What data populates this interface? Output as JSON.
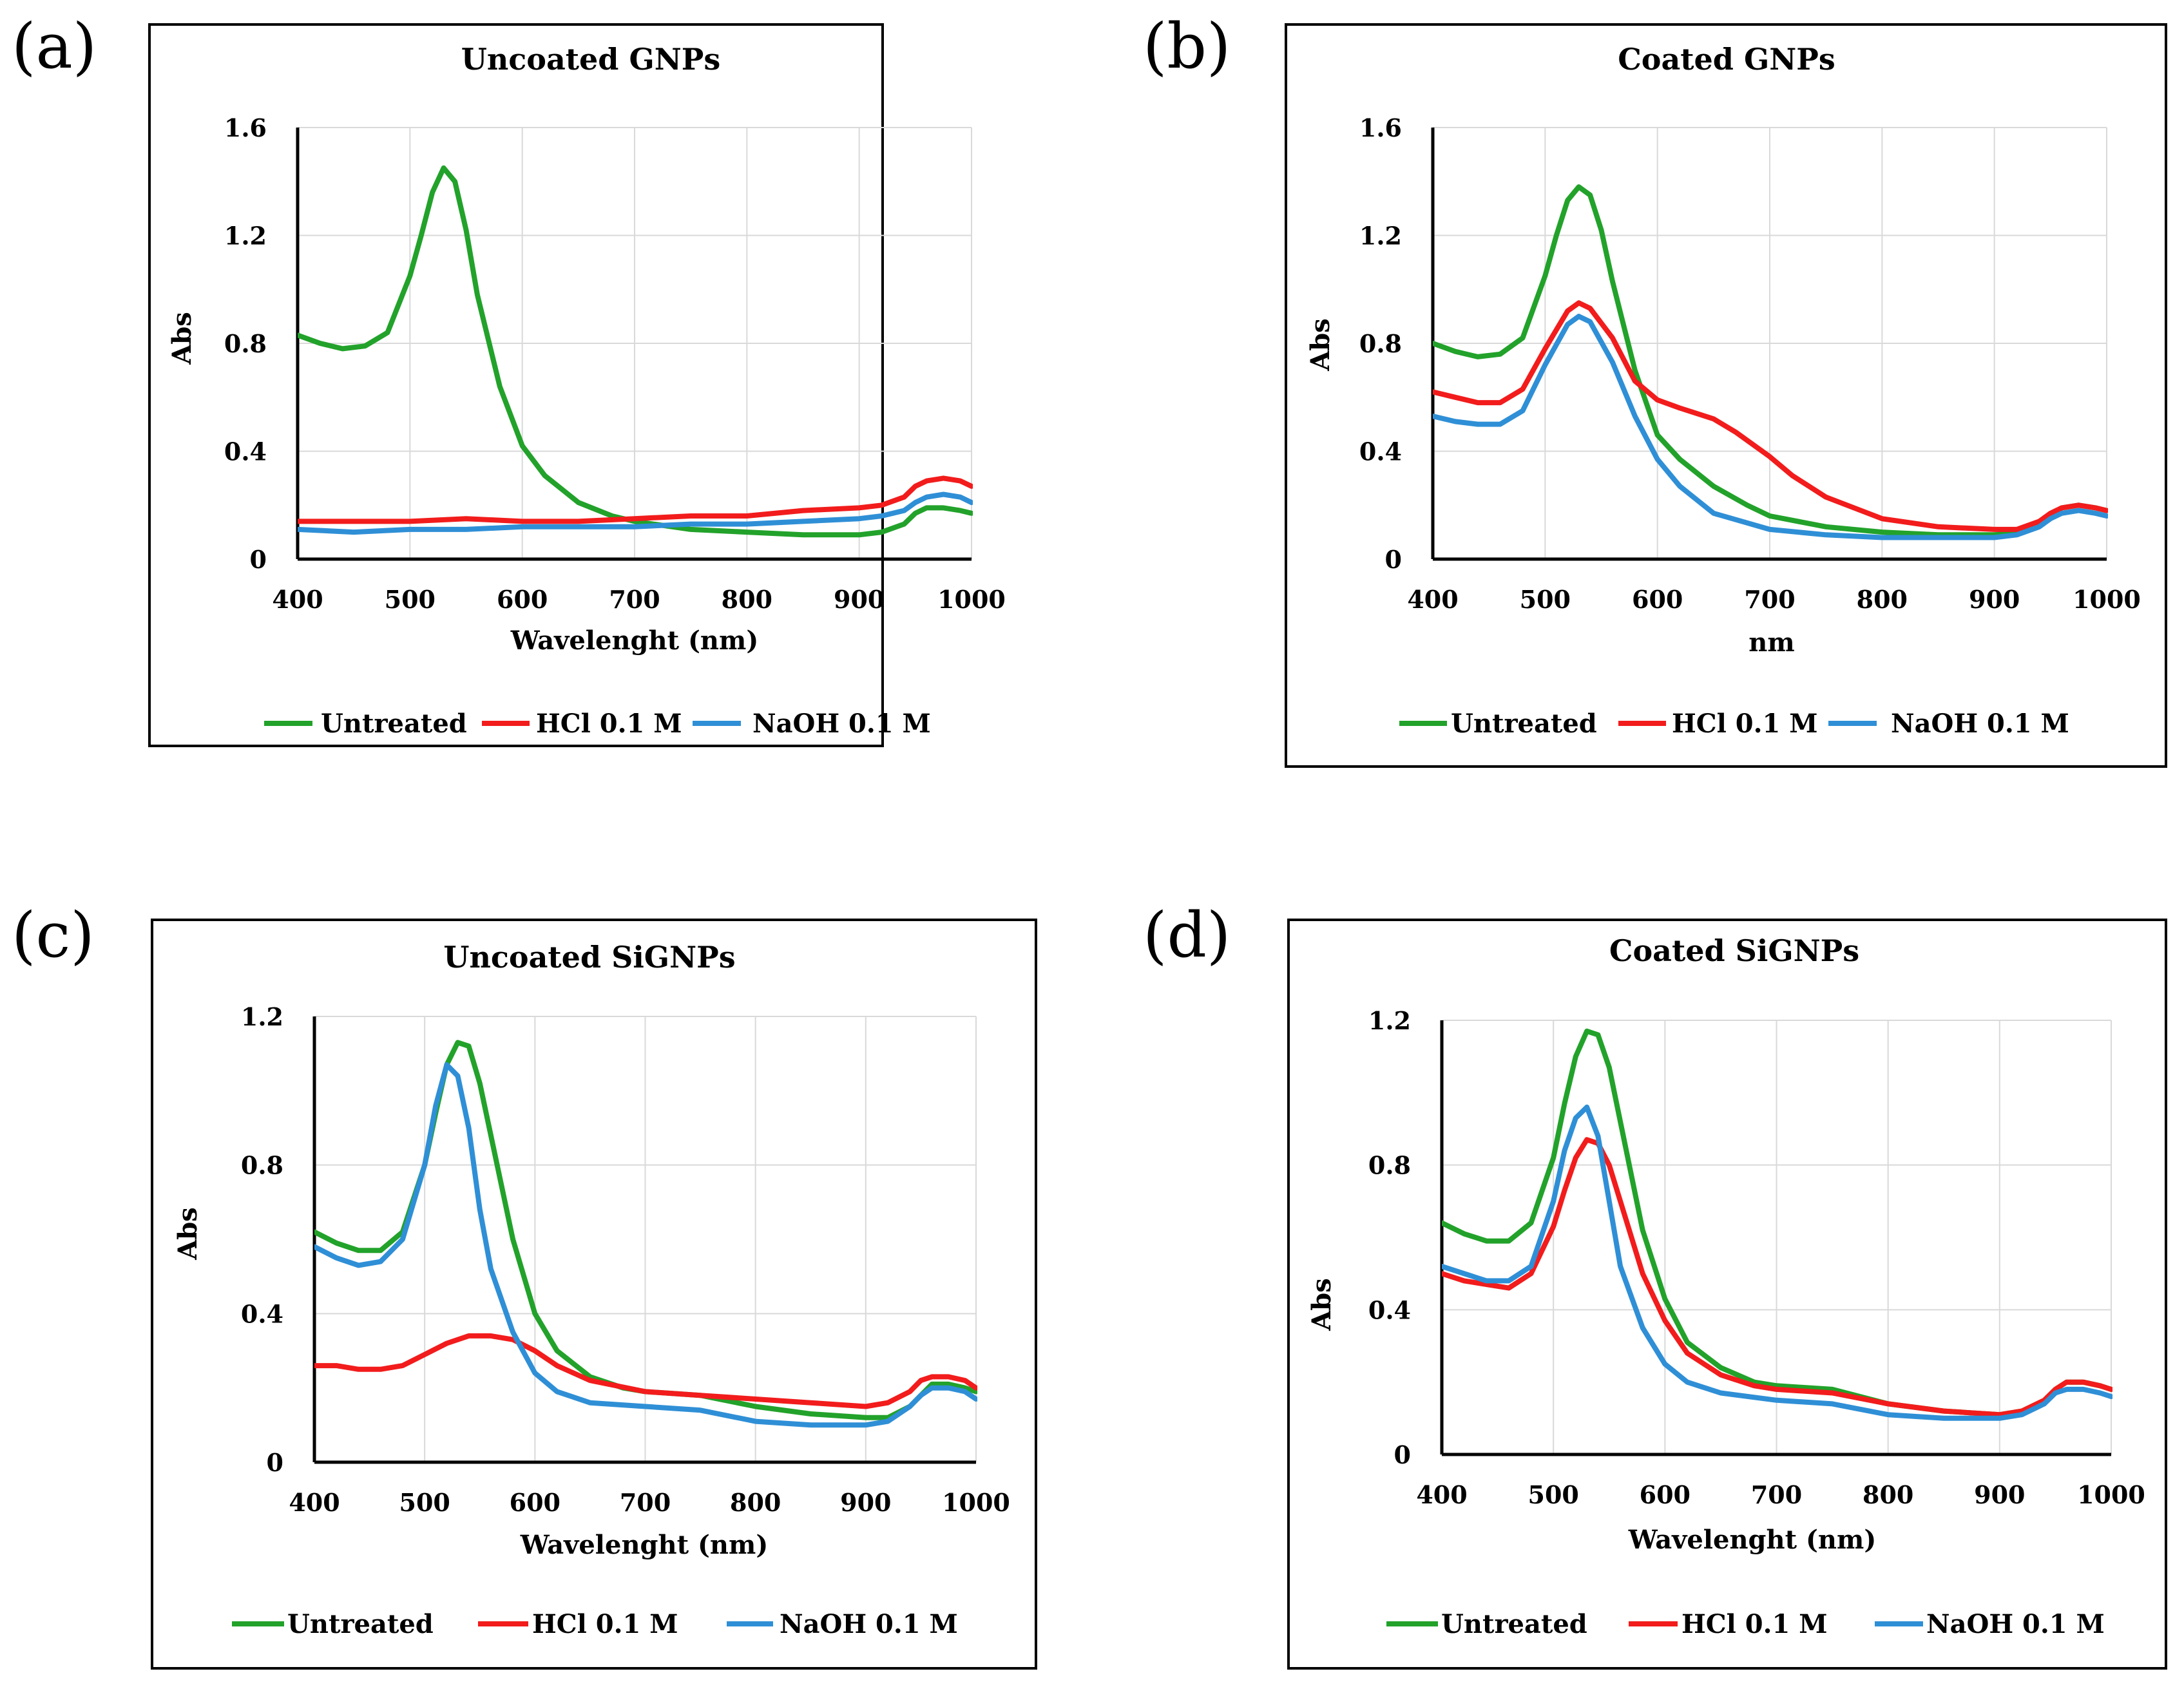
{
  "colors": {
    "untreated": "#22a22a",
    "hcl": "#f21c1c",
    "naoh": "#2f8fd6"
  },
  "chart_data": [
    {
      "panel_label": "(a)",
      "title": "Uncoated GNPs",
      "type": "line",
      "xlabel": "Wavelenght (nm)",
      "ylabel": "Abs",
      "xlim": [
        400,
        1000
      ],
      "ylim": [
        0,
        1.6
      ],
      "xticks": [
        400,
        500,
        600,
        700,
        800,
        900,
        1000
      ],
      "xtick_labels": [
        "400",
        "500",
        "600",
        "700",
        "800",
        "900",
        "1000"
      ],
      "yticks": [
        0,
        0.4,
        0.8,
        1.2,
        1.6
      ],
      "ytick_labels": [
        "0",
        "0.4",
        "0.8",
        "1.2",
        "1.6"
      ],
      "grid": true,
      "legend_position": "bottom",
      "series": [
        {
          "name": "Untreated",
          "color_key": "untreated",
          "x": [
            400,
            420,
            440,
            460,
            480,
            500,
            510,
            520,
            530,
            540,
            550,
            560,
            580,
            600,
            620,
            650,
            680,
            700,
            750,
            800,
            850,
            900,
            920,
            940,
            950,
            960,
            975,
            990,
            1000
          ],
          "y": [
            0.83,
            0.8,
            0.78,
            0.79,
            0.84,
            1.05,
            1.2,
            1.36,
            1.45,
            1.4,
            1.22,
            0.98,
            0.64,
            0.42,
            0.31,
            0.21,
            0.16,
            0.14,
            0.11,
            0.1,
            0.09,
            0.09,
            0.1,
            0.13,
            0.17,
            0.19,
            0.19,
            0.18,
            0.17
          ]
        },
        {
          "name": "HCl 0.1 M",
          "color_key": "hcl",
          "x": [
            400,
            450,
            500,
            550,
            600,
            650,
            700,
            750,
            800,
            850,
            900,
            920,
            940,
            950,
            960,
            975,
            990,
            1000
          ],
          "y": [
            0.14,
            0.14,
            0.14,
            0.15,
            0.14,
            0.14,
            0.15,
            0.16,
            0.16,
            0.18,
            0.19,
            0.2,
            0.23,
            0.27,
            0.29,
            0.3,
            0.29,
            0.27
          ]
        },
        {
          "name": "NaOH 0.1 M",
          "color_key": "naoh",
          "x": [
            400,
            450,
            500,
            550,
            600,
            650,
            700,
            750,
            800,
            850,
            900,
            920,
            940,
            950,
            960,
            975,
            990,
            1000
          ],
          "y": [
            0.11,
            0.1,
            0.11,
            0.11,
            0.12,
            0.12,
            0.12,
            0.13,
            0.13,
            0.14,
            0.15,
            0.16,
            0.18,
            0.21,
            0.23,
            0.24,
            0.23,
            0.21
          ]
        }
      ]
    },
    {
      "panel_label": "(b)",
      "title": "Coated GNPs",
      "type": "line",
      "xlabel": "nm",
      "ylabel": "Abs",
      "xlim": [
        400,
        1000
      ],
      "ylim": [
        0,
        1.6
      ],
      "xticks": [
        400,
        500,
        600,
        700,
        800,
        900,
        1000
      ],
      "xtick_labels": [
        "400",
        "500",
        "600",
        "700",
        "800",
        "900",
        "1000"
      ],
      "yticks": [
        0,
        0.4,
        0.8,
        1.2,
        1.6
      ],
      "ytick_labels": [
        "0",
        "0.4",
        "0.8",
        "1.2",
        "1.6"
      ],
      "grid": true,
      "legend_position": "bottom",
      "series": [
        {
          "name": "Untreated",
          "color_key": "untreated",
          "x": [
            400,
            420,
            440,
            460,
            480,
            500,
            510,
            520,
            530,
            540,
            550,
            560,
            580,
            600,
            620,
            650,
            680,
            700,
            750,
            800,
            850,
            900,
            920,
            940,
            950,
            960,
            975,
            990,
            1000
          ],
          "y": [
            0.8,
            0.77,
            0.75,
            0.76,
            0.82,
            1.05,
            1.2,
            1.33,
            1.38,
            1.35,
            1.22,
            1.03,
            0.7,
            0.46,
            0.37,
            0.27,
            0.2,
            0.16,
            0.12,
            0.1,
            0.09,
            0.09,
            0.1,
            0.13,
            0.16,
            0.19,
            0.2,
            0.19,
            0.18
          ]
        },
        {
          "name": "HCl 0.1 M",
          "color_key": "hcl",
          "x": [
            400,
            420,
            440,
            460,
            480,
            500,
            520,
            530,
            540,
            560,
            580,
            600,
            620,
            650,
            670,
            700,
            720,
            750,
            800,
            850,
            900,
            920,
            940,
            950,
            960,
            975,
            990,
            1000
          ],
          "y": [
            0.62,
            0.6,
            0.58,
            0.58,
            0.63,
            0.78,
            0.92,
            0.95,
            0.93,
            0.82,
            0.66,
            0.59,
            0.56,
            0.52,
            0.47,
            0.38,
            0.31,
            0.23,
            0.15,
            0.12,
            0.11,
            0.11,
            0.14,
            0.17,
            0.19,
            0.2,
            0.19,
            0.18
          ]
        },
        {
          "name": "NaOH 0.1 M",
          "color_key": "naoh",
          "x": [
            400,
            420,
            440,
            460,
            480,
            500,
            520,
            530,
            540,
            560,
            580,
            600,
            620,
            650,
            700,
            750,
            800,
            850,
            900,
            920,
            940,
            950,
            960,
            975,
            990,
            1000
          ],
          "y": [
            0.53,
            0.51,
            0.5,
            0.5,
            0.55,
            0.72,
            0.87,
            0.9,
            0.88,
            0.73,
            0.53,
            0.37,
            0.27,
            0.17,
            0.11,
            0.09,
            0.08,
            0.08,
            0.08,
            0.09,
            0.12,
            0.15,
            0.17,
            0.18,
            0.17,
            0.16
          ]
        }
      ]
    },
    {
      "panel_label": "(c)",
      "title": "Uncoated SiGNPs",
      "type": "line",
      "xlabel": "Wavelenght (nm)",
      "ylabel": "Abs",
      "xlim": [
        400,
        1000
      ],
      "ylim": [
        0,
        1.2
      ],
      "xticks": [
        400,
        500,
        600,
        700,
        800,
        900,
        1000
      ],
      "xtick_labels": [
        "400",
        "500",
        "600",
        "700",
        "800",
        "900",
        "1000"
      ],
      "yticks": [
        0,
        0.4,
        0.8,
        1.2
      ],
      "ytick_labels": [
        "0",
        "0.4",
        "0.8",
        "1.2"
      ],
      "grid": true,
      "legend_position": "bottom",
      "series": [
        {
          "name": "Untreated",
          "color_key": "untreated",
          "x": [
            400,
            420,
            440,
            460,
            480,
            500,
            510,
            520,
            530,
            540,
            550,
            560,
            580,
            600,
            620,
            650,
            680,
            700,
            750,
            800,
            850,
            900,
            920,
            940,
            950,
            960,
            975,
            990,
            1000
          ],
          "y": [
            0.62,
            0.59,
            0.57,
            0.57,
            0.62,
            0.8,
            0.94,
            1.07,
            1.13,
            1.12,
            1.02,
            0.88,
            0.6,
            0.4,
            0.3,
            0.23,
            0.2,
            0.19,
            0.18,
            0.15,
            0.13,
            0.12,
            0.12,
            0.15,
            0.18,
            0.21,
            0.21,
            0.2,
            0.19
          ]
        },
        {
          "name": "HCl 0.1 M",
          "color_key": "hcl",
          "x": [
            400,
            420,
            440,
            460,
            480,
            500,
            520,
            540,
            560,
            580,
            600,
            620,
            650,
            700,
            750,
            800,
            850,
            900,
            920,
            940,
            950,
            960,
            975,
            990,
            1000
          ],
          "y": [
            0.26,
            0.26,
            0.25,
            0.25,
            0.26,
            0.29,
            0.32,
            0.34,
            0.34,
            0.33,
            0.3,
            0.26,
            0.22,
            0.19,
            0.18,
            0.17,
            0.16,
            0.15,
            0.16,
            0.19,
            0.22,
            0.23,
            0.23,
            0.22,
            0.2
          ]
        },
        {
          "name": "NaOH 0.1 M",
          "color_key": "naoh",
          "x": [
            400,
            420,
            440,
            460,
            480,
            500,
            510,
            520,
            530,
            540,
            550,
            560,
            580,
            600,
            620,
            650,
            700,
            750,
            800,
            850,
            900,
            920,
            940,
            950,
            960,
            975,
            990,
            1000
          ],
          "y": [
            0.58,
            0.55,
            0.53,
            0.54,
            0.6,
            0.8,
            0.96,
            1.07,
            1.04,
            0.9,
            0.68,
            0.52,
            0.35,
            0.24,
            0.19,
            0.16,
            0.15,
            0.14,
            0.11,
            0.1,
            0.1,
            0.11,
            0.15,
            0.18,
            0.2,
            0.2,
            0.19,
            0.17
          ]
        }
      ]
    },
    {
      "panel_label": "(d)",
      "title": "Coated SiGNPs",
      "type": "line",
      "xlabel": "Wavelenght (nm)",
      "ylabel": "Abs",
      "xlim": [
        400,
        1000
      ],
      "ylim": [
        0,
        1.2
      ],
      "xticks": [
        400,
        500,
        600,
        700,
        800,
        900,
        1000
      ],
      "xtick_labels": [
        "400",
        "500",
        "600",
        "700",
        "800",
        "900",
        "1000"
      ],
      "yticks": [
        0,
        0.4,
        0.8,
        1.2
      ],
      "ytick_labels": [
        "0",
        "0.4",
        "0.8",
        "1.2"
      ],
      "grid": true,
      "legend_position": "bottom",
      "series": [
        {
          "name": "Untreated",
          "color_key": "untreated",
          "x": [
            400,
            420,
            440,
            460,
            480,
            500,
            510,
            520,
            530,
            540,
            550,
            560,
            580,
            600,
            620,
            650,
            680,
            700,
            750,
            800,
            850,
            900,
            920,
            940,
            950,
            960,
            975,
            990,
            1000
          ],
          "y": [
            0.64,
            0.61,
            0.59,
            0.59,
            0.64,
            0.82,
            0.97,
            1.1,
            1.17,
            1.16,
            1.07,
            0.92,
            0.62,
            0.43,
            0.31,
            0.24,
            0.2,
            0.19,
            0.18,
            0.14,
            0.12,
            0.11,
            0.12,
            0.15,
            0.18,
            0.2,
            0.2,
            0.19,
            0.18
          ]
        },
        {
          "name": "HCl 0.1 M",
          "color_key": "hcl",
          "x": [
            400,
            420,
            440,
            460,
            480,
            500,
            510,
            520,
            530,
            540,
            550,
            560,
            580,
            600,
            620,
            650,
            680,
            700,
            750,
            800,
            850,
            900,
            920,
            940,
            950,
            960,
            975,
            990,
            1000
          ],
          "y": [
            0.5,
            0.48,
            0.47,
            0.46,
            0.5,
            0.63,
            0.73,
            0.82,
            0.87,
            0.86,
            0.8,
            0.7,
            0.5,
            0.37,
            0.28,
            0.22,
            0.19,
            0.18,
            0.17,
            0.14,
            0.12,
            0.11,
            0.12,
            0.15,
            0.18,
            0.2,
            0.2,
            0.19,
            0.18
          ]
        },
        {
          "name": "NaOH 0.1 M",
          "color_key": "naoh",
          "x": [
            400,
            420,
            440,
            460,
            480,
            500,
            510,
            520,
            530,
            540,
            550,
            560,
            580,
            600,
            620,
            650,
            700,
            750,
            800,
            850,
            900,
            920,
            940,
            950,
            960,
            975,
            990,
            1000
          ],
          "y": [
            0.52,
            0.5,
            0.48,
            0.48,
            0.52,
            0.7,
            0.84,
            0.93,
            0.96,
            0.88,
            0.7,
            0.52,
            0.35,
            0.25,
            0.2,
            0.17,
            0.15,
            0.14,
            0.11,
            0.1,
            0.1,
            0.11,
            0.14,
            0.17,
            0.18,
            0.18,
            0.17,
            0.16
          ]
        }
      ]
    }
  ]
}
